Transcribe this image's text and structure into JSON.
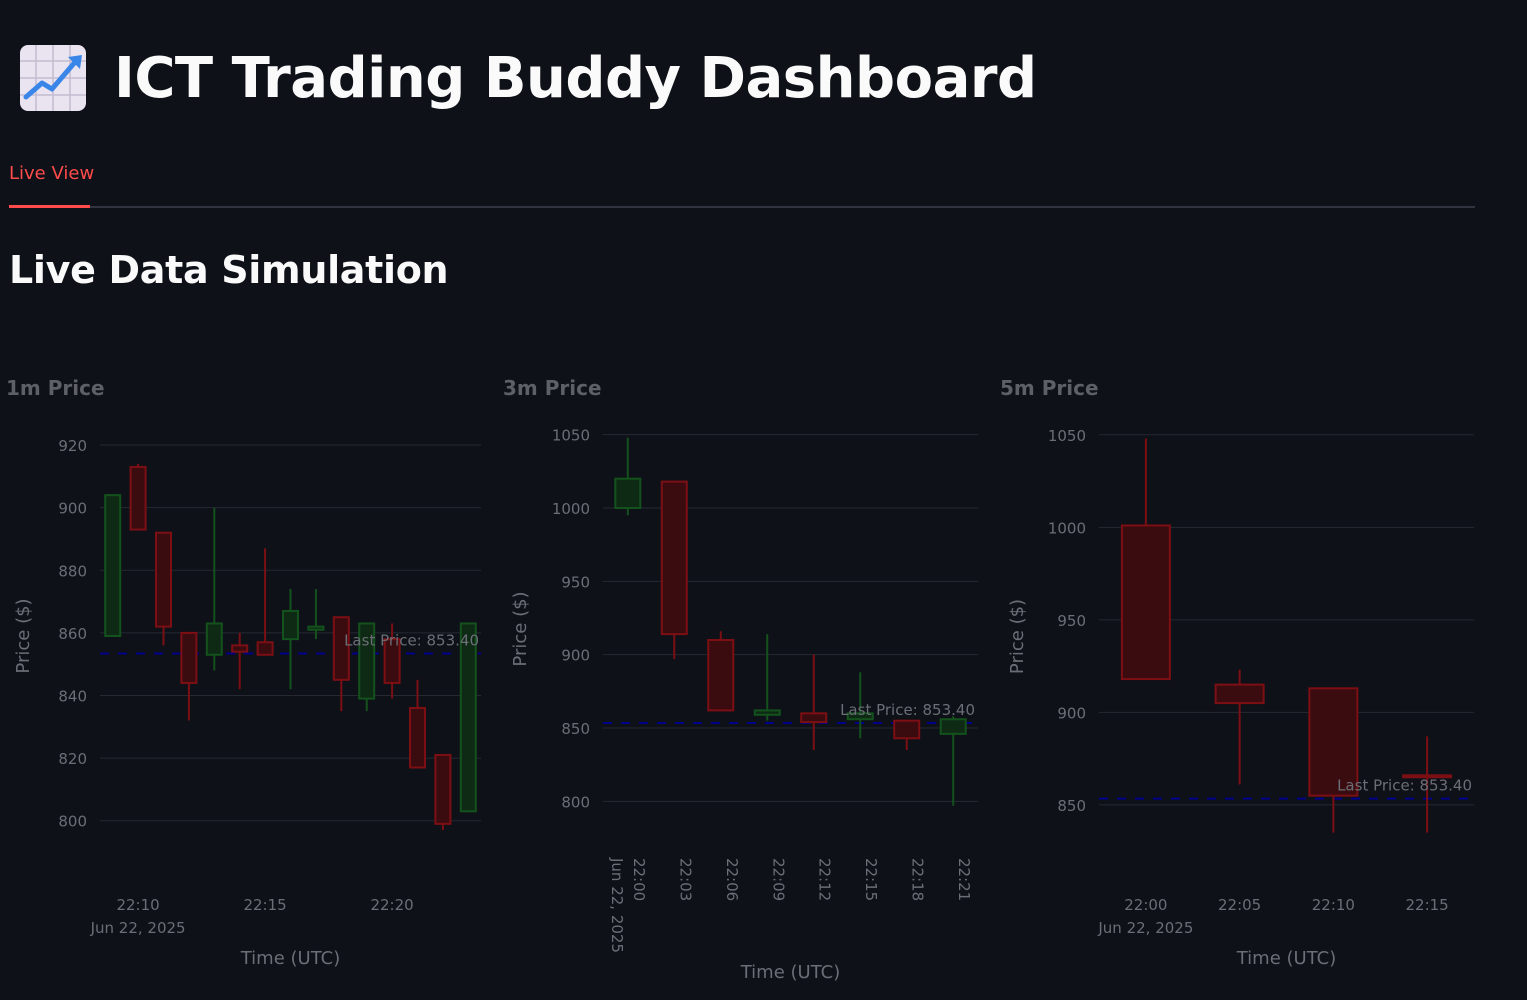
{
  "app": {
    "title": "ICT Trading Buddy Dashboard",
    "title_icon": "chart-increasing-icon"
  },
  "tabs": [
    {
      "label": "Live View",
      "active": true
    }
  ],
  "section": {
    "heading": "Live Data Simulation"
  },
  "colors": {
    "background": "#0e1117",
    "accent": "#ff4b4b",
    "increasing": "#14521d",
    "decreasing": "#7c0f14",
    "last_price_line": "#00008b"
  },
  "chart_data": [
    {
      "type": "candlestick",
      "title": "1m Price",
      "xlabel": "Time (UTC)",
      "ylabel": "Price ($)",
      "ylim": [
        790,
        928
      ],
      "yticks": [
        800,
        820,
        840,
        860,
        880,
        900,
        920
      ],
      "xticks": [
        {
          "t": "22:10",
          "label": "22:10",
          "sublabel": "Jun 22, 2025"
        },
        {
          "t": "22:15",
          "label": "22:15"
        },
        {
          "t": "22:20",
          "label": "22:20"
        }
      ],
      "last_price": 853.4,
      "last_price_label": "Last Price: 853.40",
      "candles": [
        {
          "t": "22:09",
          "open": 859,
          "high": 904,
          "low": 859,
          "close": 904
        },
        {
          "t": "22:10",
          "open": 913,
          "high": 914,
          "low": 893,
          "close": 893
        },
        {
          "t": "22:11",
          "open": 892,
          "high": 892,
          "low": 856,
          "close": 862
        },
        {
          "t": "22:12",
          "open": 860,
          "high": 860,
          "low": 832,
          "close": 844
        },
        {
          "t": "22:13",
          "open": 853,
          "high": 900,
          "low": 848,
          "close": 863
        },
        {
          "t": "22:14",
          "open": 856,
          "high": 860,
          "low": 842,
          "close": 854
        },
        {
          "t": "22:15",
          "open": 857,
          "high": 887,
          "low": 853,
          "close": 853
        },
        {
          "t": "22:16",
          "open": 858,
          "high": 874,
          "low": 842,
          "close": 867
        },
        {
          "t": "22:17",
          "open": 861,
          "high": 874,
          "low": 858,
          "close": 862
        },
        {
          "t": "22:18",
          "open": 865,
          "high": 865,
          "low": 835,
          "close": 845
        },
        {
          "t": "22:19",
          "open": 839,
          "high": 863,
          "low": 835,
          "close": 863
        },
        {
          "t": "22:20",
          "open": 858,
          "high": 863,
          "low": 839,
          "close": 844
        },
        {
          "t": "22:21",
          "open": 836,
          "high": 845,
          "low": 817,
          "close": 817
        },
        {
          "t": "22:22",
          "open": 821,
          "high": 821,
          "low": 797,
          "close": 799
        },
        {
          "t": "22:23",
          "open": 803,
          "high": 863,
          "low": 803,
          "close": 863
        }
      ]
    },
    {
      "type": "candlestick",
      "title": "3m Price",
      "xlabel": "Time (UTC)",
      "ylabel": "Price ($)",
      "ylim": [
        775,
        1060
      ],
      "yticks": [
        800,
        850,
        900,
        950,
        1000,
        1050
      ],
      "xticks": [
        {
          "t": "22:00",
          "label": "22:00",
          "sublabel": "Jun 22, 2025"
        },
        {
          "t": "22:03",
          "label": "22:03"
        },
        {
          "t": "22:06",
          "label": "22:06"
        },
        {
          "t": "22:09",
          "label": "22:09"
        },
        {
          "t": "22:12",
          "label": "22:12"
        },
        {
          "t": "22:15",
          "label": "22:15"
        },
        {
          "t": "22:18",
          "label": "22:18"
        },
        {
          "t": "22:21",
          "label": "22:21"
        }
      ],
      "last_price": 853.4,
      "last_price_label": "Last Price: 853.40",
      "candles": [
        {
          "t": "22:00",
          "open": 1000,
          "high": 1048,
          "low": 995,
          "close": 1020
        },
        {
          "t": "22:03",
          "open": 1018,
          "high": 1018,
          "low": 897,
          "close": 914
        },
        {
          "t": "22:06",
          "open": 910,
          "high": 916,
          "low": 862,
          "close": 862
        },
        {
          "t": "22:09",
          "open": 859,
          "high": 914,
          "low": 855,
          "close": 862
        },
        {
          "t": "22:12",
          "open": 860,
          "high": 900,
          "low": 835,
          "close": 854
        },
        {
          "t": "22:15",
          "open": 856,
          "high": 888,
          "low": 843,
          "close": 860
        },
        {
          "t": "22:18",
          "open": 855,
          "high": 855,
          "low": 835,
          "close": 843
        },
        {
          "t": "22:21",
          "open": 846,
          "high": 858,
          "low": 797,
          "close": 856
        }
      ]
    },
    {
      "type": "candlestick",
      "title": "5m Price",
      "xlabel": "Time (UTC)",
      "ylabel": "Price ($)",
      "ylim": [
        824,
        1058
      ],
      "yticks": [
        850,
        900,
        950,
        1000,
        1050
      ],
      "xticks": [
        {
          "t": "22:00",
          "label": "22:00",
          "sublabel": "Jun 22, 2025"
        },
        {
          "t": "22:05",
          "label": "22:05"
        },
        {
          "t": "22:10",
          "label": "22:10"
        },
        {
          "t": "22:15",
          "label": "22:15"
        }
      ],
      "last_price": 853.4,
      "last_price_label": "Last Price: 853.40",
      "candles": [
        {
          "t": "22:00",
          "open": 1001,
          "high": 1048,
          "low": 918,
          "close": 918
        },
        {
          "t": "22:05",
          "open": 915,
          "high": 923,
          "low": 861,
          "close": 905
        },
        {
          "t": "22:10",
          "open": 913,
          "high": 913,
          "low": 835,
          "close": 855
        },
        {
          "t": "22:15",
          "open": 866,
          "high": 887,
          "low": 835,
          "close": 865
        }
      ]
    }
  ]
}
